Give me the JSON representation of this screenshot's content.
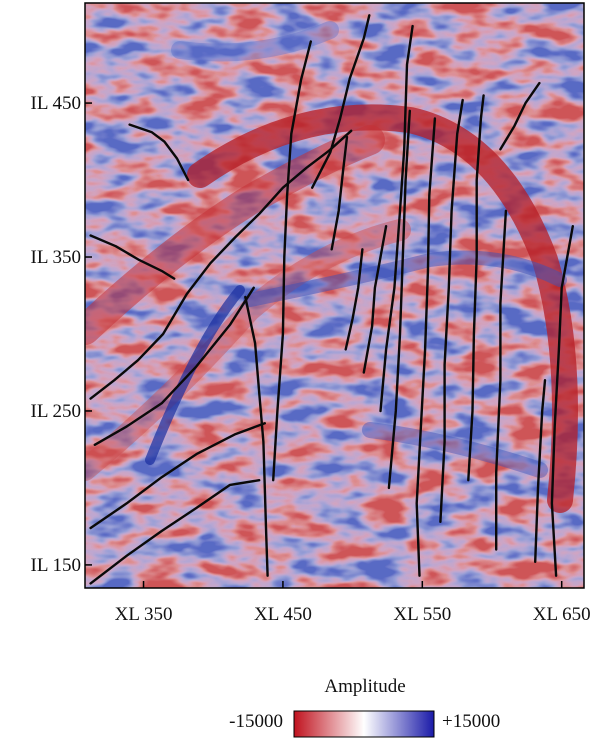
{
  "chart_data": {
    "type": "heatmap",
    "title": "",
    "subtitle": "",
    "xlabel": "",
    "ylabel": "",
    "x_ticks": [
      {
        "value": 350,
        "label": "XL 350"
      },
      {
        "value": 450,
        "label": "XL 450"
      },
      {
        "value": 550,
        "label": "XL 550"
      },
      {
        "value": 650,
        "label": "XL 650"
      }
    ],
    "y_ticks": [
      {
        "value": 450,
        "label": "IL 450"
      },
      {
        "value": 350,
        "label": "IL 350"
      },
      {
        "value": 250,
        "label": "IL 250"
      },
      {
        "value": 150,
        "label": "IL 150"
      }
    ],
    "xlim": [
      308,
      666
    ],
    "ylim": [
      135,
      515
    ],
    "colorbar": {
      "title": "Amplitude",
      "min_label": "-15000",
      "max_label": "+15000",
      "range": [
        -15000,
        15000
      ],
      "colors": [
        "#c0121e",
        "#ffffff",
        "#1a1aa8"
      ]
    },
    "grid": false,
    "legend": "bottom",
    "fault_traces": [
      [
        [
          340,
          436
        ],
        [
          356,
          431
        ],
        [
          365,
          425
        ],
        [
          374,
          414
        ],
        [
          382,
          400
        ]
      ],
      [
        [
          312,
          364
        ],
        [
          330,
          357
        ],
        [
          347,
          348
        ],
        [
          363,
          341
        ],
        [
          372,
          336
        ]
      ],
      [
        [
          312,
          258
        ],
        [
          329,
          270
        ],
        [
          346,
          283
        ],
        [
          364,
          300
        ],
        [
          381,
          326
        ],
        [
          398,
          346
        ],
        [
          416,
          363
        ],
        [
          433,
          378
        ],
        [
          450,
          395
        ],
        [
          467,
          408
        ],
        [
          483,
          419
        ],
        [
          499,
          432
        ]
      ],
      [
        [
          315,
          228
        ],
        [
          338,
          240
        ],
        [
          363,
          255
        ],
        [
          388,
          279
        ],
        [
          412,
          306
        ],
        [
          429,
          330
        ]
      ],
      [
        [
          312,
          174
        ],
        [
          338,
          190
        ],
        [
          363,
          207
        ],
        [
          388,
          222
        ],
        [
          416,
          235
        ],
        [
          437,
          242
        ]
      ],
      [
        [
          312,
          138
        ],
        [
          338,
          156
        ],
        [
          363,
          172
        ],
        [
          388,
          187
        ],
        [
          412,
          202
        ],
        [
          433,
          205
        ]
      ],
      [
        [
          439,
          143
        ],
        [
          438,
          170
        ],
        [
          437,
          200
        ],
        [
          436,
          230
        ],
        [
          433,
          262
        ],
        [
          430,
          294
        ],
        [
          423,
          324
        ]
      ],
      [
        [
          443,
          205
        ],
        [
          446,
          250
        ],
        [
          450,
          300
        ],
        [
          451,
          350
        ],
        [
          453,
          390
        ],
        [
          456,
          430
        ],
        [
          463,
          465
        ],
        [
          470,
          490
        ]
      ],
      [
        [
          471,
          395
        ],
        [
          484,
          418
        ],
        [
          491,
          440
        ],
        [
          498,
          466
        ],
        [
          508,
          492
        ],
        [
          512,
          507
        ]
      ],
      [
        [
          485,
          355
        ],
        [
          490,
          380
        ],
        [
          493,
          405
        ],
        [
          496,
          428
        ]
      ],
      [
        [
          495,
          290
        ],
        [
          500,
          310
        ],
        [
          504,
          330
        ],
        [
          507,
          355
        ]
      ],
      [
        [
          508,
          275
        ],
        [
          514,
          305
        ],
        [
          516,
          330
        ],
        [
          520,
          350
        ],
        [
          524,
          370
        ]
      ],
      [
        [
          520,
          250
        ],
        [
          524,
          290
        ],
        [
          530,
          330
        ],
        [
          534,
          380
        ],
        [
          537,
          420
        ],
        [
          539,
          475
        ],
        [
          543,
          500
        ]
      ],
      [
        [
          526,
          200
        ],
        [
          531,
          250
        ],
        [
          534,
          300
        ],
        [
          536,
          350
        ],
        [
          538,
          400
        ],
        [
          541,
          445
        ]
      ],
      [
        [
          548,
          143
        ],
        [
          546,
          190
        ],
        [
          549,
          240
        ],
        [
          552,
          290
        ],
        [
          554,
          340
        ],
        [
          555,
          390
        ],
        [
          559,
          440
        ]
      ],
      [
        [
          563,
          178
        ],
        [
          566,
          230
        ],
        [
          566,
          280
        ],
        [
          569,
          330
        ],
        [
          571,
          380
        ],
        [
          575,
          430
        ],
        [
          579,
          452
        ]
      ],
      [
        [
          583,
          205
        ],
        [
          586,
          250
        ],
        [
          587,
          300
        ],
        [
          589,
          350
        ],
        [
          589,
          400
        ],
        [
          592,
          440
        ],
        [
          594,
          455
        ]
      ],
      [
        [
          603,
          160
        ],
        [
          603,
          210
        ],
        [
          606,
          270
        ],
        [
          606,
          320
        ],
        [
          610,
          380
        ]
      ],
      [
        [
          606,
          420
        ],
        [
          616,
          435
        ],
        [
          624,
          450
        ],
        [
          634,
          463
        ]
      ],
      [
        [
          631,
          152
        ],
        [
          633,
          200
        ],
        [
          636,
          250
        ],
        [
          638,
          270
        ]
      ],
      [
        [
          646,
          143
        ],
        [
          643,
          190
        ],
        [
          645,
          240
        ],
        [
          648,
          290
        ],
        [
          650,
          330
        ],
        [
          658,
          370
        ]
      ]
    ]
  }
}
